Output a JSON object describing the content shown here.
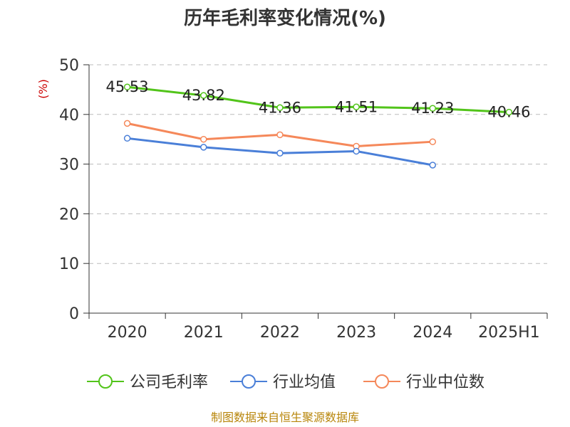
{
  "chart_data": {
    "type": "line",
    "title": "历年毛利率变化情况(%)",
    "ylabel": "(%)",
    "categories": [
      "2020",
      "2021",
      "2022",
      "2023",
      "2024",
      "2025H1"
    ],
    "ylim": [
      0,
      50
    ],
    "yticks": [
      "0",
      "10",
      "20",
      "30",
      "40",
      "50"
    ],
    "grid": true,
    "legend_position": "bottom",
    "series": [
      {
        "name": "公司毛利率",
        "color": "#52c41a",
        "values": [
          45.53,
          43.82,
          41.36,
          41.51,
          41.23,
          40.46
        ],
        "labels": [
          "45.53",
          "43.82",
          "41.36",
          "41.51",
          "41.23",
          "40.46"
        ]
      },
      {
        "name": "行业均值",
        "color": "#4a7fd8",
        "values": [
          35.2,
          33.4,
          32.2,
          32.6,
          29.8,
          null
        ]
      },
      {
        "name": "行业中位数",
        "color": "#f5885a",
        "values": [
          38.2,
          35.0,
          35.9,
          33.6,
          34.5,
          null
        ]
      }
    ]
  },
  "footer": {
    "source": "制图数据来自恒生聚源数据库"
  }
}
